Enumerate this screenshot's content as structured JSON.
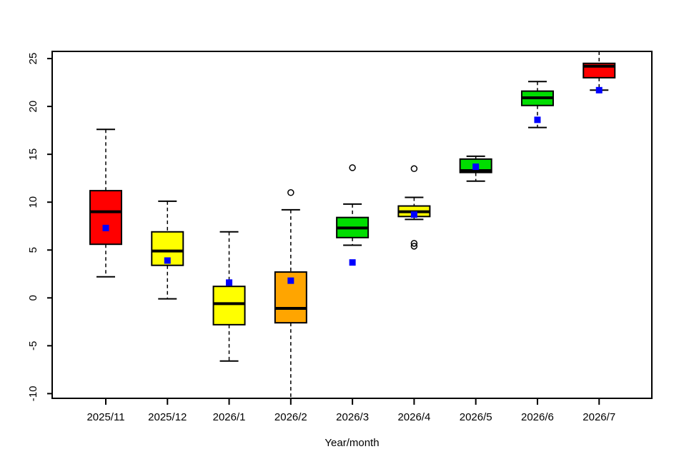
{
  "chart_data": {
    "type": "boxplot",
    "title": "",
    "xlabel": "Year/month",
    "ylabel": "",
    "ylim": [
      -10.5,
      25.75
    ],
    "yticks": [
      25,
      20,
      15,
      10,
      5,
      0,
      -5,
      -10
    ],
    "grid": "off",
    "legend": "none",
    "frame_color": "#000000",
    "mean_marker": "blue-filled-square",
    "mean_marker_color": "#0000ff",
    "outlier_marker": "open-circle",
    "categories": [
      "2025/11",
      "2025/12",
      "2026/1",
      "2026/2",
      "2026/3",
      "2026/4",
      "2026/5",
      "2026/6",
      "2026/7"
    ],
    "series": [
      {
        "category": "2025/11",
        "color": "#ff0000",
        "whisker_low": 2.2,
        "q1": 5.6,
        "median": 9.0,
        "q3": 11.2,
        "whisker_high": 17.6,
        "mean": 7.3,
        "outliers": [],
        "clip_low": false,
        "clip_high": false
      },
      {
        "category": "2025/12",
        "color": "#ffff00",
        "whisker_low": -0.1,
        "q1": 3.4,
        "median": 4.9,
        "q3": 6.9,
        "whisker_high": 10.1,
        "mean": 3.9,
        "outliers": [],
        "clip_low": false,
        "clip_high": false
      },
      {
        "category": "2026/1",
        "color": "#ffff00",
        "whisker_low": -6.6,
        "q1": -2.8,
        "median": -0.6,
        "q3": 1.2,
        "whisker_high": 6.9,
        "mean": 1.6,
        "outliers": [],
        "clip_low": false,
        "clip_high": false
      },
      {
        "category": "2026/2",
        "color": "#ffa500",
        "whisker_low": -10.5,
        "q1": -2.6,
        "median": -1.1,
        "q3": 2.7,
        "whisker_high": 9.2,
        "mean": 1.8,
        "outliers": [
          11.0
        ],
        "clip_low": true,
        "clip_high": false
      },
      {
        "category": "2026/3",
        "color": "#00dd00",
        "whisker_low": 5.5,
        "q1": 6.3,
        "median": 7.3,
        "q3": 8.4,
        "whisker_high": 9.8,
        "mean": 3.7,
        "outliers": [
          13.6
        ],
        "clip_low": false,
        "clip_high": false
      },
      {
        "category": "2026/4",
        "color": "#ffff00",
        "whisker_low": 8.2,
        "q1": 8.5,
        "median": 9.0,
        "q3": 9.6,
        "whisker_high": 10.5,
        "mean": 8.7,
        "outliers": [
          13.5,
          5.7,
          5.4
        ],
        "clip_low": false,
        "clip_high": false
      },
      {
        "category": "2026/5",
        "color": "#00dd00",
        "whisker_low": 12.2,
        "q1": 13.1,
        "median": 13.3,
        "q3": 14.5,
        "whisker_high": 14.8,
        "mean": 13.7,
        "outliers": [],
        "clip_low": false,
        "clip_high": false
      },
      {
        "category": "2026/6",
        "color": "#00dd00",
        "whisker_low": 17.8,
        "q1": 20.1,
        "median": 20.9,
        "q3": 21.6,
        "whisker_high": 22.6,
        "mean": 18.6,
        "outliers": [],
        "clip_low": false,
        "clip_high": false
      },
      {
        "category": "2026/7",
        "color": "#ff0000",
        "whisker_low": 21.7,
        "q1": 23.0,
        "median": 24.2,
        "q3": 24.5,
        "whisker_high": 25.75,
        "mean": 21.7,
        "outliers": [],
        "clip_low": false,
        "clip_high": true
      }
    ]
  }
}
